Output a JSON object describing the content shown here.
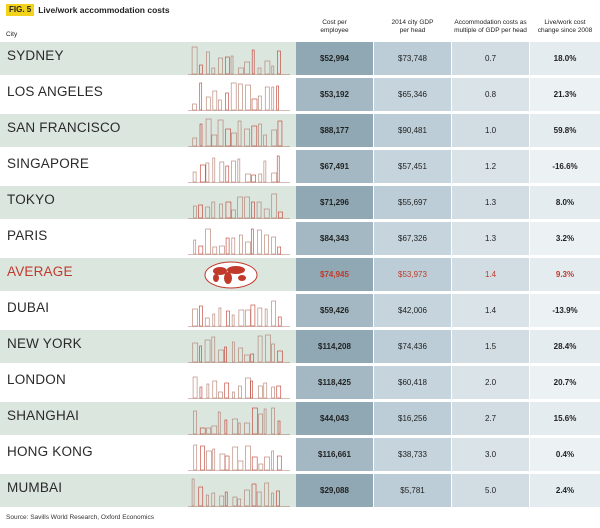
{
  "figure": {
    "badge": "FIG. 5",
    "title": "Live/work accommodation costs",
    "source": "Source: Savills World Research, Oxford Economics"
  },
  "colors": {
    "accent_red": "#c0392b",
    "badge_yellow": "#f2d21a",
    "row_tint": "#dbe6df"
  },
  "chart_data": {
    "type": "table",
    "columns": [
      "City",
      "Cost per employee",
      "2014 city GDP per head",
      "Accommodation costs as multiple of GDP per head",
      "Live/work cost change since 2008"
    ],
    "rows": [
      {
        "city": "SYDNEY",
        "cost": "$52,994",
        "gdp": "$73,748",
        "multiple": "0.7",
        "change": "18.0%"
      },
      {
        "city": "LOS ANGELES",
        "cost": "$53,192",
        "gdp": "$65,346",
        "multiple": "0.8",
        "change": "21.3%"
      },
      {
        "city": "SAN FRANCISCO",
        "cost": "$88,177",
        "gdp": "$90,481",
        "multiple": "1.0",
        "change": "59.8%"
      },
      {
        "city": "SINGAPORE",
        "cost": "$67,491",
        "gdp": "$57,451",
        "multiple": "1.2",
        "change": "-16.6%"
      },
      {
        "city": "TOKYO",
        "cost": "$71,296",
        "gdp": "$55,697",
        "multiple": "1.3",
        "change": "8.0%"
      },
      {
        "city": "PARIS",
        "cost": "$84,343",
        "gdp": "$67,326",
        "multiple": "1.3",
        "change": "3.2%"
      },
      {
        "city": "AVERAGE",
        "cost": "$74,945",
        "gdp": "$53,973",
        "multiple": "1.4",
        "change": "9.3%"
      },
      {
        "city": "DUBAI",
        "cost": "$59,426",
        "gdp": "$42,006",
        "multiple": "1.4",
        "change": "-13.9%"
      },
      {
        "city": "NEW YORK",
        "cost": "$114,208",
        "gdp": "$74,436",
        "multiple": "1.5",
        "change": "28.4%"
      },
      {
        "city": "LONDON",
        "cost": "$118,425",
        "gdp": "$60,418",
        "multiple": "2.0",
        "change": "20.7%"
      },
      {
        "city": "SHANGHAI",
        "cost": "$44,043",
        "gdp": "$16,256",
        "multiple": "2.7",
        "change": "15.6%"
      },
      {
        "city": "HONG KONG",
        "cost": "$116,661",
        "gdp": "$38,733",
        "multiple": "3.0",
        "change": "0.4%"
      },
      {
        "city": "MUMBAI",
        "cost": "$29,088",
        "gdp": "$5,781",
        "multiple": "5.0",
        "change": "2.4%"
      }
    ]
  }
}
